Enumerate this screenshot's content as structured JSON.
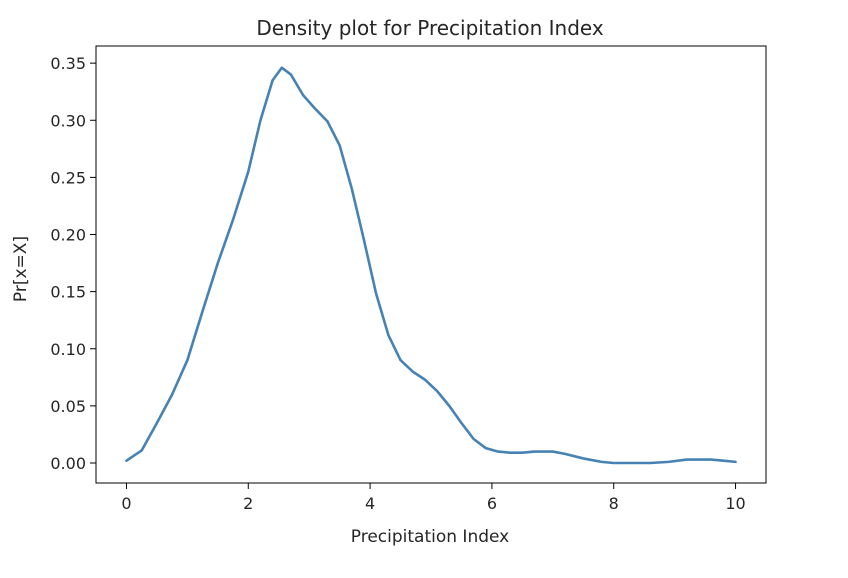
{
  "chart_data": {
    "type": "line",
    "title": "Density plot for Precipitation Index",
    "xlabel": "Precipitation Index",
    "ylabel": "Pr[x=X]",
    "xlim": [
      -0.5,
      10.5
    ],
    "ylim": [
      -0.0175,
      0.365
    ],
    "grid": false,
    "legend": "none",
    "x_ticks": [
      0,
      2,
      4,
      6,
      8,
      10
    ],
    "x_tick_labels": [
      "0",
      "2",
      "4",
      "6",
      "8",
      "10"
    ],
    "y_ticks": [
      0.0,
      0.05,
      0.1,
      0.15,
      0.2,
      0.25,
      0.3,
      0.35
    ],
    "y_tick_labels": [
      "0.00",
      "0.05",
      "0.10",
      "0.15",
      "0.20",
      "0.25",
      "0.30",
      "0.35"
    ],
    "series": [
      {
        "color": "#4682b4",
        "x": [
          0,
          0.25,
          0.5,
          0.75,
          1.0,
          1.25,
          1.5,
          1.75,
          2.0,
          2.2,
          2.4,
          2.55,
          2.7,
          2.9,
          3.1,
          3.3,
          3.5,
          3.7,
          3.9,
          4.1,
          4.3,
          4.5,
          4.7,
          4.9,
          5.1,
          5.3,
          5.5,
          5.7,
          5.9,
          6.1,
          6.3,
          6.5,
          6.7,
          7.0,
          7.2,
          7.5,
          7.8,
          8.0,
          8.3,
          8.6,
          8.9,
          9.2,
          9.4,
          9.6,
          9.8,
          10.0
        ],
        "y": [
          0.002,
          0.011,
          0.035,
          0.06,
          0.09,
          0.133,
          0.175,
          0.213,
          0.255,
          0.3,
          0.335,
          0.346,
          0.34,
          0.322,
          0.31,
          0.299,
          0.278,
          0.24,
          0.195,
          0.148,
          0.112,
          0.09,
          0.08,
          0.073,
          0.063,
          0.05,
          0.035,
          0.021,
          0.013,
          0.01,
          0.009,
          0.009,
          0.01,
          0.01,
          0.008,
          0.004,
          0.001,
          0.0,
          0.0,
          0.0,
          0.001,
          0.003,
          0.003,
          0.003,
          0.002,
          0.001
        ]
      }
    ]
  }
}
